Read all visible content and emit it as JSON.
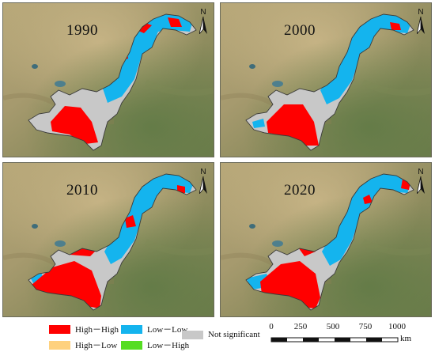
{
  "panels": [
    {
      "year": "1990"
    },
    {
      "year": "2000"
    },
    {
      "year": "2010"
    },
    {
      "year": "2020"
    }
  ],
  "north_label": "N",
  "legend": [
    {
      "label": "High－High",
      "color": "#ff0000"
    },
    {
      "label": "Low－Low",
      "color": "#14b4ee"
    },
    {
      "label": "Not significant",
      "color": "#c8c8c8"
    },
    {
      "label": "High－Low",
      "color": "#fed17e"
    },
    {
      "label": "Low－High",
      "color": "#55dd22"
    }
  ],
  "scale_bar": {
    "ticks": [
      "0",
      "250",
      "500",
      "750",
      "1000"
    ],
    "unit": "km"
  },
  "colors": {
    "terrain_desert": "#b9a779",
    "terrain_green": "#6f7f4e",
    "outline": "#3a3a3a"
  }
}
